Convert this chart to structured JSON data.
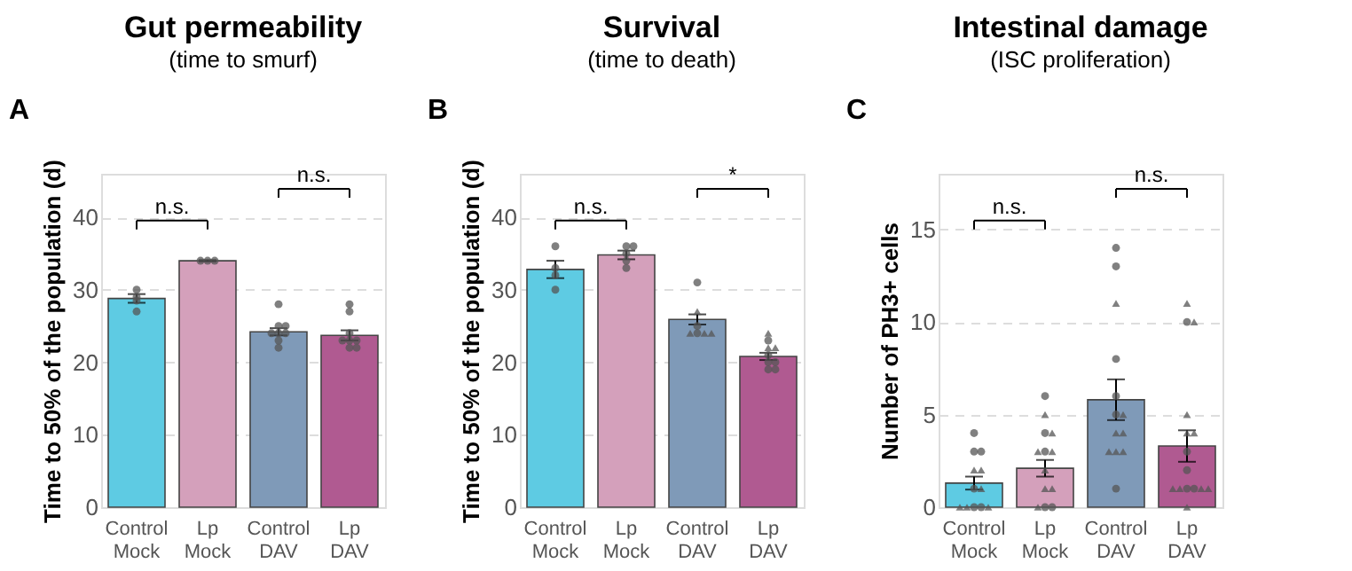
{
  "chart_data": [
    {
      "type": "bar",
      "title": "Gut permeability",
      "subtitle": "(time to smurf)",
      "ylabel": "Time to 50% of the population (d)",
      "categories": [
        "Control\nMock",
        "Lp\nMock",
        "Control\nDAV",
        "Lp\nDAV"
      ],
      "ylim": [
        0,
        46
      ],
      "yticks": [
        0,
        10,
        20,
        30,
        40
      ],
      "grid": "y",
      "legend": false,
      "annotations": [
        "A",
        "n.s.",
        "n.s."
      ],
      "series": [
        {
          "colors": [
            "#5ecbe3",
            "#d4a0bb",
            "#7f9ab8",
            "#b05a91"
          ],
          "values": [
            28.8,
            34.0,
            24.2,
            23.7
          ],
          "errors": [
            0.6,
            0.1,
            0.5,
            0.7
          ]
        },
        {
          "type": "scatter",
          "marker": "circle",
          "color": "#555555",
          "x": [
            "Control\nMock",
            "Control\nMock",
            "Control\nMock",
            "Control\nMock",
            "Lp\nMock",
            "Lp\nMock",
            "Lp\nMock",
            "Control\nDAV",
            "Control\nDAV",
            "Control\nDAV",
            "Control\nDAV",
            "Control\nDAV",
            "Control\nDAV",
            "Control\nDAV",
            "Control\nDAV",
            "Lp\nDAV",
            "Lp\nDAV",
            "Lp\nDAV",
            "Lp\nDAV",
            "Lp\nDAV",
            "Lp\nDAV",
            "Lp\nDAV",
            "Lp\nDAV"
          ],
          "values": [
            30,
            29,
            28.5,
            27,
            34,
            34,
            34,
            28,
            25,
            25,
            24,
            24,
            24,
            23,
            22,
            28,
            27,
            24,
            23,
            23,
            23,
            22,
            22
          ]
        }
      ]
    },
    {
      "type": "bar",
      "title": "Survival",
      "subtitle": "(time to death)",
      "ylabel": "Time to 50% of the population (d)",
      "categories": [
        "Control\nMock",
        "Lp\nMock",
        "Control\nDAV",
        "Lp\nDAV"
      ],
      "ylim": [
        0,
        46
      ],
      "yticks": [
        0,
        10,
        20,
        30,
        40
      ],
      "grid": "y",
      "legend": false,
      "annotations": [
        "B",
        "n.s.",
        "*"
      ],
      "series": [
        {
          "colors": [
            "#5ecbe3",
            "#d4a0bb",
            "#7f9ab8",
            "#b05a91"
          ],
          "values": [
            32.8,
            34.8,
            25.9,
            20.8
          ],
          "errors": [
            1.2,
            0.6,
            0.7,
            0.5
          ]
        },
        {
          "type": "scatter",
          "marker": "circle",
          "color": "#555555",
          "x": [
            "Control\nMock",
            "Control\nMock",
            "Control\nMock",
            "Control\nMock",
            "Lp\nMock",
            "Lp\nMock",
            "Lp\nMock",
            "Lp\nMock",
            "Lp\nMock",
            "Control\nDAV",
            "Control\nDAV",
            "Control\nDAV",
            "Lp\nDAV",
            "Lp\nDAV",
            "Lp\nDAV",
            "Lp\nDAV",
            "Lp\nDAV",
            "Lp\nDAV"
          ],
          "values": [
            36,
            33,
            32,
            30,
            36,
            36,
            35,
            34,
            33,
            31,
            25,
            24,
            23,
            21,
            20,
            20,
            19,
            19
          ]
        },
        {
          "type": "scatter",
          "marker": "triangle",
          "color": "#555555",
          "x": [
            "Control\nDAV",
            "Control\nDAV",
            "Control\nDAV",
            "Control\nDAV",
            "Lp\nDAV",
            "Lp\nDAV",
            "Lp\nDAV"
          ],
          "values": [
            27,
            24,
            24,
            24,
            24,
            22,
            22
          ]
        }
      ]
    },
    {
      "type": "bar",
      "title": "Intestinal damage",
      "subtitle": "(ISC proliferation)",
      "ylabel": "Number of PH3+ cells",
      "categories": [
        "Control\nMock",
        "Lp\nMock",
        "Control\nDAV",
        "Lp\nDAV"
      ],
      "ylim": [
        0,
        18
      ],
      "yticks": [
        0,
        5,
        10,
        15
      ],
      "grid": "y",
      "legend": false,
      "annotations": [
        "C",
        "n.s.",
        "n.s."
      ],
      "series": [
        {
          "colors": [
            "#5ecbe3",
            "#d4a0bb",
            "#7f9ab8",
            "#b05a91"
          ],
          "values": [
            1.3,
            2.1,
            5.8,
            3.3
          ],
          "errors": [
            0.35,
            0.45,
            1.1,
            0.85
          ]
        },
        {
          "type": "scatter",
          "marker": "circle",
          "color": "#555555",
          "x": [
            "Control\nMock",
            "Control\nMock",
            "Control\nMock",
            "Control\nMock",
            "Control\nMock",
            "Control\nMock",
            "Lp\nMock",
            "Lp\nMock",
            "Lp\nMock",
            "Lp\nMock",
            "Lp\nMock",
            "Control\nDAV",
            "Control\nDAV",
            "Control\nDAV",
            "Control\nDAV",
            "Control\nDAV",
            "Control\nDAV",
            "Lp\nDAV",
            "Lp\nDAV",
            "Lp\nDAV",
            "Lp\nDAV",
            "Lp\nDAV"
          ],
          "values": [
            4,
            3,
            3,
            1,
            0,
            0,
            6,
            4,
            3,
            0,
            0,
            14,
            13,
            8,
            6,
            5,
            1,
            10,
            3,
            2,
            1,
            1
          ]
        },
        {
          "type": "scatter",
          "marker": "triangle",
          "color": "#555555",
          "x": [
            "Control\nMock",
            "Control\nMock",
            "Control\nMock",
            "Control\nMock",
            "Control\nMock",
            "Control\nMock",
            "Lp\nMock",
            "Lp\nMock",
            "Lp\nMock",
            "Lp\nMock",
            "Lp\nMock",
            "Lp\nMock",
            "Lp\nMock",
            "Lp\nMock",
            "Control\nDAV",
            "Control\nDAV",
            "Control\nDAV",
            "Control\nDAV",
            "Control\nDAV",
            "Control\nDAV",
            "Control\nDAV",
            "Lp\nDAV",
            "Lp\nDAV",
            "Lp\nDAV",
            "Lp\nDAV",
            "Lp\nDAV",
            "Lp\nDAV",
            "Lp\nDAV",
            "Lp\nDAV",
            "Lp\nDAV",
            "Lp\nDAV"
          ],
          "values": [
            2,
            2,
            1,
            0,
            0,
            0,
            5,
            4,
            3,
            3,
            2,
            1,
            1,
            0,
            11,
            5,
            4,
            4,
            3,
            3,
            3,
            11,
            10,
            5,
            4,
            4,
            1,
            1,
            1,
            1,
            0
          ]
        }
      ]
    }
  ]
}
